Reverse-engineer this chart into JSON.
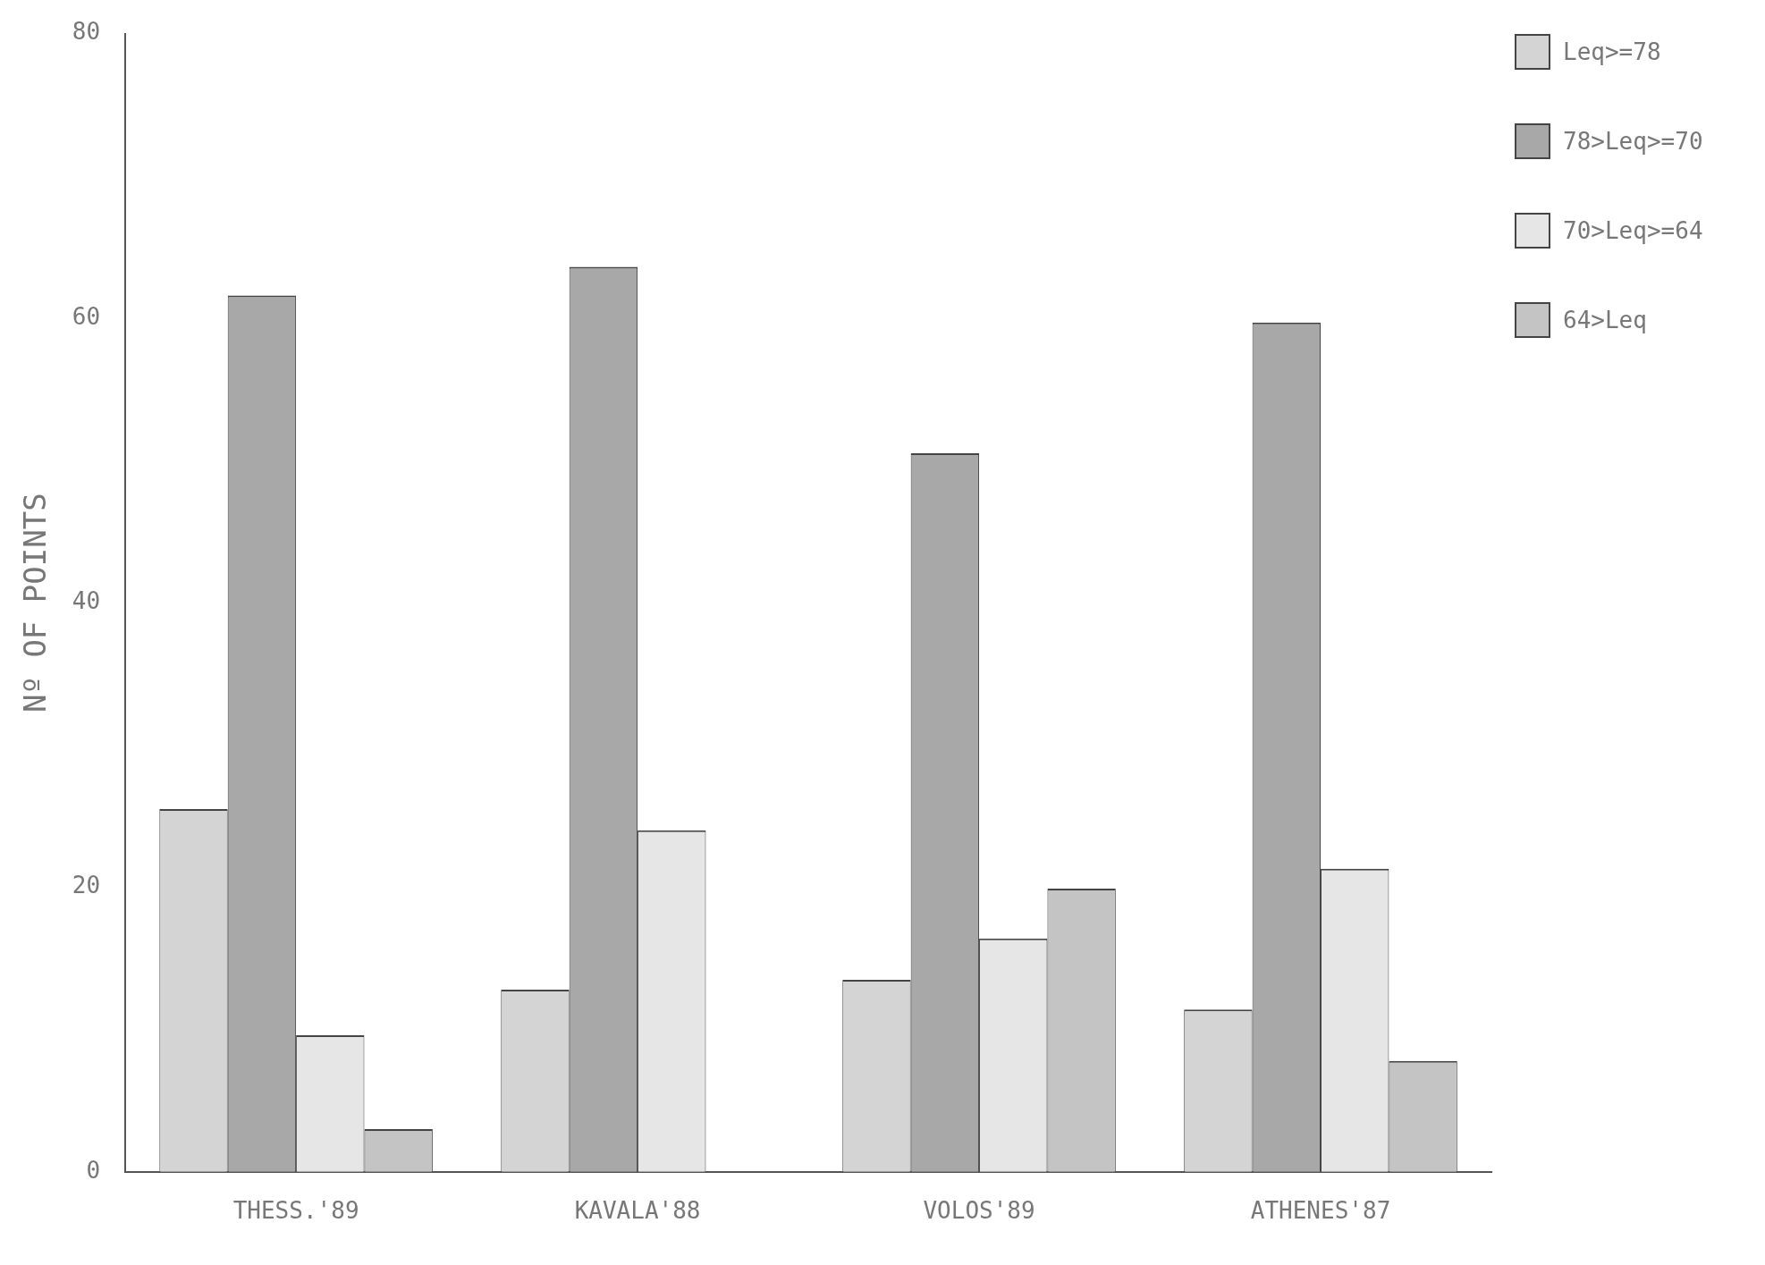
{
  "chart_data": {
    "type": "bar",
    "ylabel": "Nº OF POINTS",
    "categories": [
      "THESS.'89",
      "KAVALA'88",
      "VOLOS'89",
      "ATHENES'87"
    ],
    "series": [
      {
        "name": "Leq>=78",
        "color": "#d4d4d4",
        "values": [
          25.5,
          12.8,
          13.5,
          11.4
        ]
      },
      {
        "name": "78>Leq>=70",
        "color": "#a8a8a8",
        "values": [
          61.6,
          63.6,
          50.5,
          59.7
        ]
      },
      {
        "name": "70>Leq>=64",
        "color": "#e6e6e6",
        "values": [
          9.6,
          24.0,
          16.4,
          21.3
        ]
      },
      {
        "name": "64>Leq",
        "color": "#c4c4c4",
        "values": [
          3.0,
          null,
          19.9,
          7.8
        ]
      }
    ],
    "ylim": [
      0,
      80
    ],
    "yticks": [
      0,
      20,
      40,
      60,
      80
    ],
    "grid": false,
    "legend": "top right"
  }
}
